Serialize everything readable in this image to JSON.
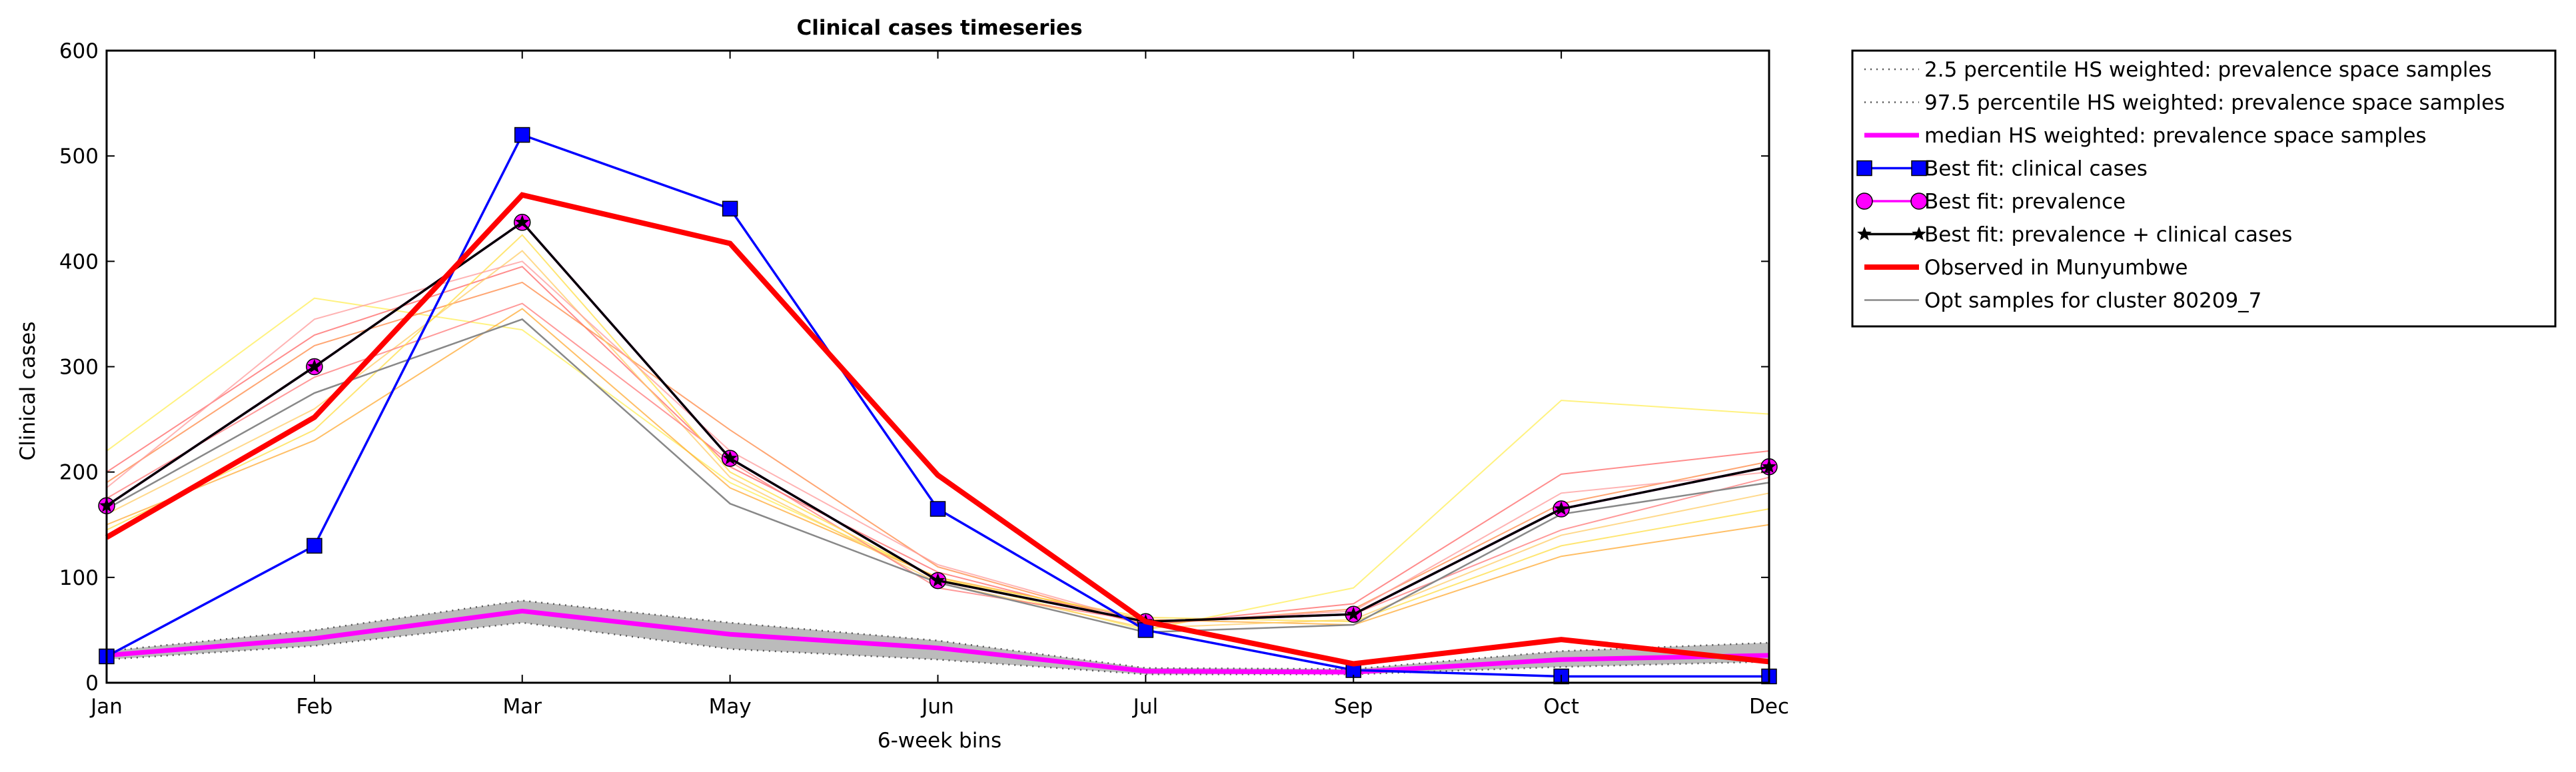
{
  "chart_data": {
    "type": "line",
    "title": "Clinical cases timeseries",
    "xlabel": "6-week bins",
    "ylabel": "Clinical cases",
    "categories": [
      "Jan",
      "Feb",
      "Mar",
      "May",
      "Jun",
      "Jul",
      "Sep",
      "Oct",
      "Dec"
    ],
    "ylim": [
      0,
      600
    ],
    "yticks": [
      "0",
      "100",
      "200",
      "300",
      "400",
      "500",
      "600"
    ],
    "legend_position": "outside-right-top",
    "grid": false,
    "band": {
      "lower": [
        22,
        35,
        57,
        32,
        22,
        8,
        8,
        15,
        20
      ],
      "upper": [
        30,
        50,
        78,
        57,
        40,
        14,
        13,
        30,
        38
      ],
      "color": "#bbbbbb"
    },
    "series": [
      {
        "name": "2.5 percentile HS weighted: prevalence space samples",
        "style": "dotted",
        "color": "#555555",
        "values": [
          22,
          35,
          57,
          32,
          22,
          8,
          8,
          15,
          20
        ]
      },
      {
        "name": "97.5 percentile HS weighted: prevalence space samples",
        "style": "dotted",
        "color": "#555555",
        "values": [
          30,
          50,
          78,
          57,
          40,
          14,
          13,
          30,
          38
        ]
      },
      {
        "name": "median HS weighted: prevalence space samples",
        "style": "thick",
        "color": "#ff00ff",
        "values": [
          26,
          42,
          68,
          46,
          33,
          11,
          10,
          22,
          26
        ]
      },
      {
        "name": "Best fit: clinical cases",
        "style": "square",
        "color": "#0000ff",
        "values": [
          25,
          130,
          520,
          450,
          165,
          50,
          12,
          6,
          6
        ]
      },
      {
        "name": "Best fit: prevalence",
        "style": "circle",
        "color": "#ff00ff",
        "values": [
          168,
          300,
          437,
          213,
          97,
          58,
          65,
          165,
          205
        ]
      },
      {
        "name": "Best fit: prevalence + clinical cases",
        "style": "star",
        "color": "#000000",
        "values": [
          168,
          300,
          437,
          213,
          97,
          58,
          65,
          165,
          205
        ]
      },
      {
        "name": "Observed in Munyumbwe",
        "style": "thick",
        "color": "#ff0000",
        "values": [
          138,
          252,
          463,
          417,
          197,
          58,
          18,
          41,
          20
        ]
      },
      {
        "name": "Opt samples for cluster 80209_7",
        "style": "thin",
        "color": "#888888",
        "values": [
          165,
          275,
          345,
          170,
          95,
          48,
          55,
          160,
          190
        ]
      }
    ],
    "samples": [
      {
        "color": "#ffee55",
        "values": [
          220,
          365,
          335,
          190,
          100,
          50,
          90,
          268,
          255
        ]
      },
      {
        "color": "#ff6666",
        "values": [
          200,
          330,
          395,
          205,
          105,
          55,
          75,
          198,
          220
        ]
      },
      {
        "color": "#ffaa33",
        "values": [
          150,
          230,
          355,
          185,
          100,
          60,
          55,
          120,
          150
        ]
      },
      {
        "color": "#ff8844",
        "values": [
          190,
          320,
          380,
          240,
          110,
          55,
          70,
          170,
          210
        ]
      },
      {
        "color": "#ffcc66",
        "values": [
          160,
          260,
          410,
          195,
          95,
          52,
          60,
          140,
          180
        ]
      },
      {
        "color": "#ff7777",
        "values": [
          175,
          290,
          360,
          210,
          90,
          58,
          65,
          145,
          195
        ]
      },
      {
        "color": "#ffdd44",
        "values": [
          145,
          240,
          425,
          200,
          98,
          62,
          58,
          130,
          165
        ]
      },
      {
        "color": "#ff9999",
        "values": [
          185,
          345,
          400,
          220,
          112,
          57,
          68,
          180,
          200
        ]
      }
    ]
  }
}
